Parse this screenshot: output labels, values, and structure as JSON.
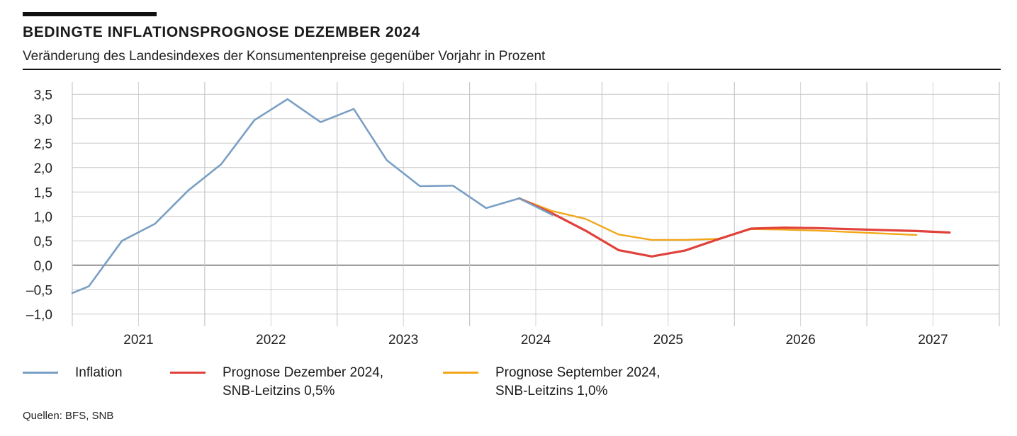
{
  "header": {
    "title": "BEDINGTE INFLATIONSPROGNOSE DEZEMBER 2024",
    "subtitle": "Veränderung des Landesindexes der Konsumentenpreise gegenüber Vorjahr in Prozent"
  },
  "legend": {
    "inflation": "Inflation",
    "dec_line1": "Prognose Dezember 2024,",
    "dec_line2": "SNB-Leitzins 0,5%",
    "sep_line1": "Prognose September 2024,",
    "sep_line2": "SNB-Leitzins 1,0%"
  },
  "source": "Quellen: BFS, SNB",
  "colors": {
    "inflation": "#7a9fc4",
    "prognose_dezember": "#e0413a",
    "prognose_september": "#f2a71b",
    "grid": "#c8c8c8",
    "zero_line": "#8f8f8f"
  },
  "chart_data": {
    "type": "line",
    "xlim": [
      2020.5,
      2027.5
    ],
    "ylim": [
      -1.25,
      3.75
    ],
    "ylabel": "",
    "xlabel": "",
    "x_ticks": [
      2021,
      2022,
      2023,
      2024,
      2025,
      2026,
      2027
    ],
    "x_tick_labels": [
      "2021",
      "2022",
      "2023",
      "2024",
      "2025",
      "2026",
      "2027"
    ],
    "y_ticks": [
      -1.0,
      -0.5,
      0.0,
      0.5,
      1.0,
      1.5,
      2.0,
      2.5,
      3.0,
      3.5
    ],
    "y_tick_labels": [
      "–1,0",
      "–0,5",
      "0,0",
      "0,5",
      "1,0",
      "1,5",
      "2,0",
      "2,5",
      "3,0",
      "3,5"
    ],
    "grid": true,
    "legend_position": "bottom",
    "series": [
      {
        "name": "Inflation",
        "x": [
          2020.5,
          2020.625,
          2020.875,
          2021.125,
          2021.375,
          2021.625,
          2021.875,
          2022.125,
          2022.375,
          2022.625,
          2022.875,
          2023.125,
          2023.375,
          2023.625,
          2023.875,
          2024.125
        ],
        "y": [
          -0.57,
          -0.43,
          0.5,
          0.85,
          1.53,
          2.07,
          2.97,
          3.4,
          2.93,
          3.2,
          2.15,
          1.62,
          1.63,
          1.17,
          1.37,
          1.03
        ]
      },
      {
        "name": "Prognose Dezember 2024, SNB-Leitzins 0,5%",
        "x": [
          2023.875,
          2024.125,
          2024.375,
          2024.625,
          2024.875,
          2025.125,
          2025.375,
          2025.625,
          2025.875,
          2026.125,
          2026.375,
          2026.625,
          2026.875,
          2027.125
        ],
        "y": [
          1.37,
          1.06,
          0.71,
          0.31,
          0.18,
          0.3,
          0.53,
          0.75,
          0.77,
          0.76,
          0.74,
          0.72,
          0.7,
          0.67
        ]
      },
      {
        "name": "Prognose September 2024, SNB-Leitzins 1,0%",
        "x": [
          2023.875,
          2024.125,
          2024.375,
          2024.625,
          2024.875,
          2025.125,
          2025.375,
          2025.625,
          2025.875,
          2026.125,
          2026.375,
          2026.625,
          2026.875
        ],
        "y": [
          1.37,
          1.11,
          0.95,
          0.63,
          0.52,
          0.52,
          0.54,
          0.74,
          0.73,
          0.71,
          0.68,
          0.65,
          0.62
        ]
      }
    ]
  }
}
